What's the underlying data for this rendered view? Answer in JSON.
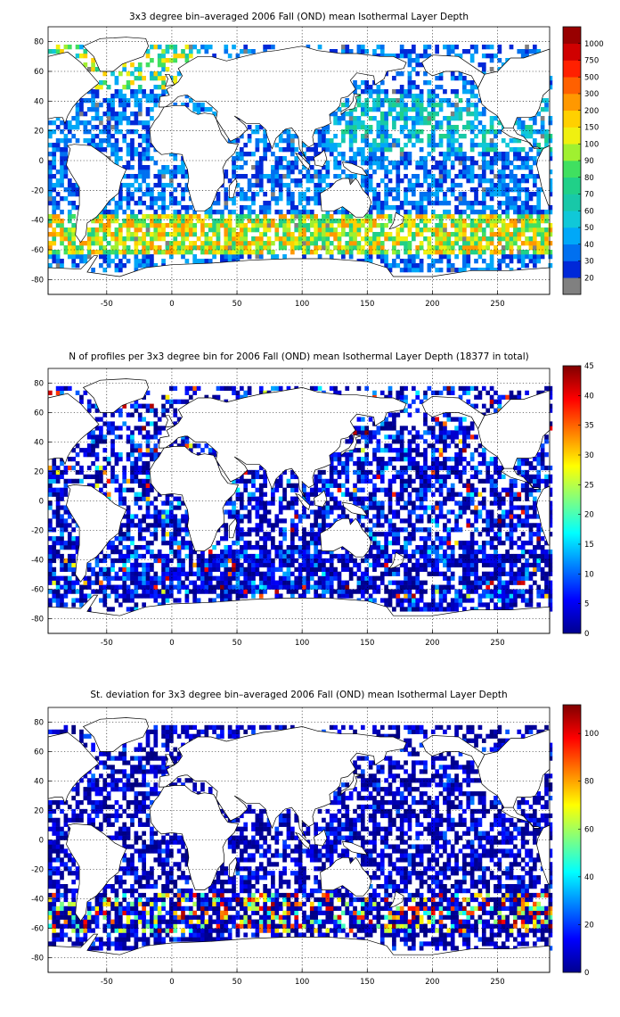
{
  "chart_data": [
    {
      "type": "heatmap",
      "title": "3x3 degree bin–averaged 2006 Fall (OND) mean Isothermal Layer Depth",
      "xlim": [
        -95,
        290
      ],
      "ylim": [
        -90,
        90
      ],
      "xticks": [
        "-50",
        "0",
        "50",
        "100",
        "150",
        "200",
        "250"
      ],
      "xtick_values": [
        -50,
        0,
        50,
        100,
        150,
        200,
        250
      ],
      "yticks": [
        "80",
        "60",
        "40",
        "20",
        "0",
        "-20",
        "-40",
        "-60",
        "-80"
      ],
      "ytick_values": [
        80,
        60,
        40,
        20,
        0,
        -20,
        -40,
        -60,
        -80
      ],
      "colorbar": {
        "kind": "discrete",
        "labels": [
          "20",
          "30",
          "40",
          "50",
          "60",
          "70",
          "80",
          "90",
          "100",
          "150",
          "200",
          "300",
          "500",
          "750",
          "1000"
        ],
        "colors": [
          "#808080",
          "#0028d8",
          "#0070f0",
          "#00a8f8",
          "#10c8d8",
          "#18c8a8",
          "#20d088",
          "#40e060",
          "#a0f030",
          "#f0f010",
          "#ffd000",
          "#ff9800",
          "#ff6000",
          "#ff2000",
          "#d00000",
          "#980000"
        ]
      },
      "grid": true,
      "colormap_scale": "binned"
    },
    {
      "type": "heatmap",
      "title": "N of profiles per 3x3 degree bin for 2006 Fall (OND) mean Isothermal Layer Depth  (18377 in total)",
      "total_profiles": 18377,
      "xlim": [
        -95,
        290
      ],
      "ylim": [
        -90,
        90
      ],
      "xticks": [
        "-50",
        "0",
        "50",
        "100",
        "150",
        "200",
        "250"
      ],
      "xtick_values": [
        -50,
        0,
        50,
        100,
        150,
        200,
        250
      ],
      "yticks": [
        "80",
        "60",
        "40",
        "20",
        "0",
        "-20",
        "-40",
        "-60",
        "-80"
      ],
      "ytick_values": [
        80,
        60,
        40,
        20,
        0,
        -20,
        -40,
        -60,
        -80
      ],
      "colorbar": {
        "kind": "continuous",
        "range": [
          0,
          45
        ],
        "labels": [
          "45",
          "40",
          "35",
          "30",
          "25",
          "20",
          "15",
          "10",
          "5",
          "0"
        ],
        "label_values": [
          45,
          40,
          35,
          30,
          25,
          20,
          15,
          10,
          5,
          0
        ]
      },
      "grid": true
    },
    {
      "type": "heatmap",
      "title": "St. deviation for 3x3 degree bin–averaged 2006 Fall (OND) mean Isothermal Layer Depth",
      "xlim": [
        -95,
        290
      ],
      "ylim": [
        -90,
        90
      ],
      "xticks": [
        "-50",
        "0",
        "50",
        "100",
        "150",
        "200",
        "250"
      ],
      "xtick_values": [
        -50,
        0,
        50,
        100,
        150,
        200,
        250
      ],
      "yticks": [
        "80",
        "60",
        "40",
        "20",
        "0",
        "-20",
        "-40",
        "-60",
        "-80"
      ],
      "ytick_values": [
        80,
        60,
        40,
        20,
        0,
        -20,
        -40,
        -60,
        -80
      ],
      "colorbar": {
        "kind": "continuous",
        "range": [
          0,
          112
        ],
        "labels": [
          "100",
          "80",
          "60",
          "40",
          "20",
          "0"
        ],
        "label_values": [
          100,
          80,
          60,
          40,
          20,
          0
        ]
      },
      "grid": true
    }
  ]
}
